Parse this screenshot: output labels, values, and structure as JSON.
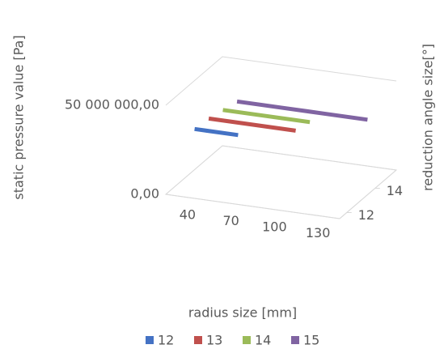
{
  "chart_data": {
    "type": "line3d",
    "y_label": "static pressure value [Pa]",
    "x_label": "radius size [mm]",
    "z_label": "reduction angle size[°]",
    "categories": [
      "40",
      "70",
      "100",
      "130"
    ],
    "series": [
      {
        "name": "12",
        "color": "#4472c4",
        "values": [
          35000000,
          35000000,
          null,
          null
        ]
      },
      {
        "name": "13",
        "color": "#c0504d",
        "values": [
          34000000,
          34000000,
          34000000,
          null
        ]
      },
      {
        "name": "14",
        "color": "#9bbb59",
        "values": [
          32000000,
          32000000,
          32000000,
          null
        ]
      },
      {
        "name": "15",
        "color": "#8064a2",
        "values": [
          30000000,
          30000000,
          30000000,
          30000000
        ]
      }
    ],
    "ylim": [
      0,
      50000000
    ],
    "yticks": [
      {
        "value": 0,
        "label": "0,00"
      },
      {
        "value": 50000000,
        "label": "50 000 000,00"
      }
    ],
    "zticks": [
      12,
      14
    ],
    "legend": "bottom"
  }
}
